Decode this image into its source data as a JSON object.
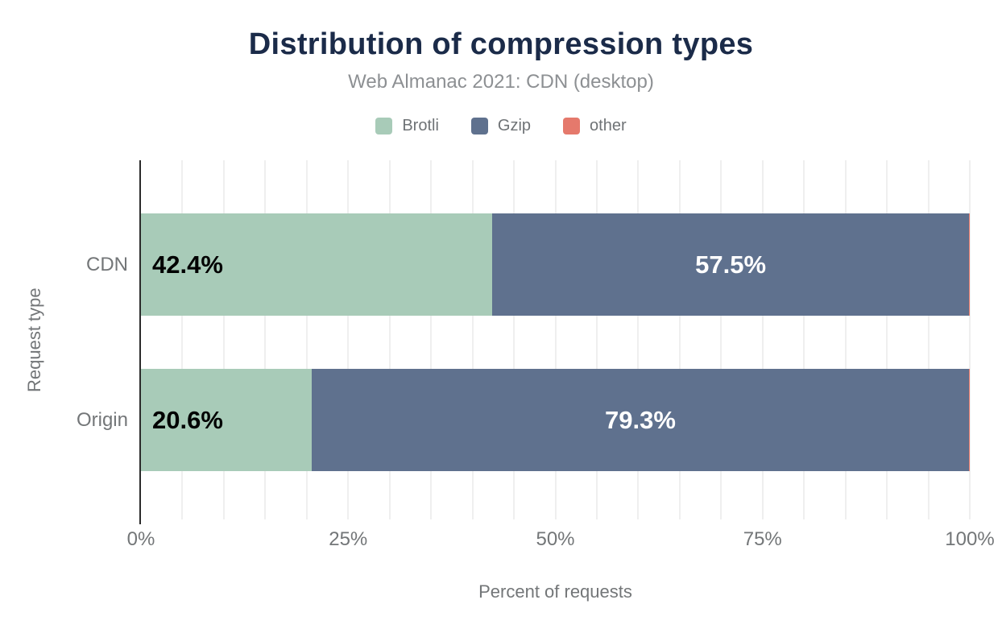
{
  "header": {
    "title": "Distribution of compression types",
    "subtitle": "Web Almanac 2021: CDN (desktop)"
  },
  "colors": {
    "title_text": "#1b2b49",
    "muted_text": "#737678",
    "axis_line": "#2b2b2b",
    "gridline": "#efefef",
    "brotli": "#a8cbb8",
    "gzip": "#5f718e",
    "other": "#e5796c"
  },
  "chart_data": {
    "type": "bar",
    "orientation": "horizontal",
    "stacked": true,
    "title": "Distribution of compression types",
    "subtitle": "Web Almanac 2021: CDN (desktop)",
    "xlabel": "Percent of requests",
    "ylabel": "Request type",
    "categories": [
      "CDN",
      "Origin"
    ],
    "series": [
      {
        "name": "Brotli",
        "color": "#a8cbb8",
        "values": [
          42.4,
          20.6
        ],
        "label_color": "#000000",
        "label_align": "start"
      },
      {
        "name": "Gzip",
        "color": "#5f718e",
        "values": [
          57.5,
          79.3
        ],
        "label_color": "#ffffff",
        "label_align": "center"
      },
      {
        "name": "other",
        "color": "#e5796c",
        "values": [
          0.1,
          0.1
        ],
        "label_color": "#ffffff",
        "label_align": "center"
      }
    ],
    "data_labels": [
      [
        "42.4%",
        "57.5%"
      ],
      [
        "20.6%",
        "79.3%"
      ]
    ],
    "x_ticks": [
      {
        "label": "0%",
        "value": 0
      },
      {
        "label": "25%",
        "value": 25
      },
      {
        "label": "50%",
        "value": 50
      },
      {
        "label": "75%",
        "value": 75
      },
      {
        "label": "100%",
        "value": 100
      }
    ],
    "xlim": [
      0,
      100
    ],
    "grid_interval": 5,
    "grid": true,
    "legend_position": "top",
    "legend": [
      "Brotli",
      "Gzip",
      "other"
    ]
  }
}
